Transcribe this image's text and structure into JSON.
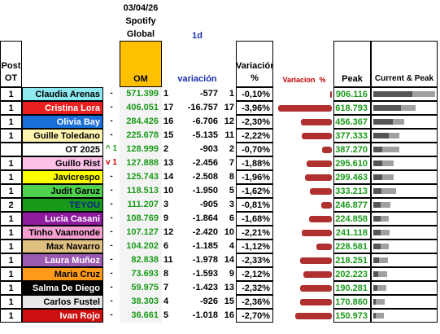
{
  "header": {
    "date": "03/04/26",
    "source": "Spotify",
    "region": "Global",
    "period": "1d"
  },
  "columns": {
    "post": "Post OT",
    "om": "OM",
    "variation": "variación",
    "variation_pct": "Variación %",
    "variation_bar": "Variacion  %",
    "peak": "Peak",
    "current_peak": "Current & Peak"
  },
  "rows": [
    {
      "post": "1",
      "name": "Claudia Arenas",
      "bg": "#8ee8f0",
      "fg": "#000000",
      "change": "-",
      "om": "571.399",
      "rank": "1",
      "variation": "-577",
      "pct_rank": "1",
      "variation_pct": "-0,10%",
      "peak": "906.116"
    },
    {
      "post": "1",
      "name": "Cristina Lora",
      "bg": "#e82020",
      "fg": "#ffffff",
      "change": "-",
      "om": "406.051",
      "rank": "17",
      "variation": "-16.757",
      "pct_rank": "17",
      "variation_pct": "-3,96%",
      "peak": "618.793"
    },
    {
      "post": "1",
      "name": "Olivia Bay",
      "bg": "#1a6fd8",
      "fg": "#ffffff",
      "change": "-",
      "om": "284.426",
      "rank": "16",
      "variation": "-6.706",
      "pct_rank": "12",
      "variation_pct": "-2,30%",
      "peak": "456.367"
    },
    {
      "post": "1",
      "name": "Guille Toledano",
      "bg": "#fff5b0",
      "fg": "#000000",
      "change": "-",
      "om": "225.678",
      "rank": "15",
      "variation": "-5.135",
      "pct_rank": "11",
      "variation_pct": "-2,22%",
      "peak": "377.333"
    },
    {
      "post": null,
      "name": "OT 2025",
      "bg": "#ffffff",
      "fg": "#000000",
      "change": "^ 1",
      "om": "128.999",
      "rank": "2",
      "variation": "-903",
      "pct_rank": "2",
      "variation_pct": "-0,70%",
      "peak": "387.270"
    },
    {
      "post": "1",
      "name": "Guillo Rist",
      "bg": "#ffc0e8",
      "fg": "#000000",
      "change": "v 1",
      "om": "127.888",
      "rank": "13",
      "variation": "-2.456",
      "pct_rank": "7",
      "variation_pct": "-1,88%",
      "peak": "295.610"
    },
    {
      "post": "1",
      "name": "Javicrespo",
      "bg": "#ffff00",
      "fg": "#000000",
      "change": "-",
      "om": "125.743",
      "rank": "14",
      "variation": "-2.508",
      "pct_rank": "8",
      "variation_pct": "-1,96%",
      "peak": "299.463"
    },
    {
      "post": "1",
      "name": "Judit Garuz",
      "bg": "#4fd04f",
      "fg": "#000000",
      "change": "-",
      "om": "118.513",
      "rank": "10",
      "variation": "-1.950",
      "pct_rank": "5",
      "variation_pct": "-1,62%",
      "peak": "333.213"
    },
    {
      "post": "2",
      "name": "TEYOU",
      "bg": "#1a9a1a",
      "fg": "#10208a",
      "change": "-",
      "om": "111.207",
      "rank": "3",
      "variation": "-905",
      "pct_rank": "3",
      "variation_pct": "-0,81%",
      "peak": "246.877"
    },
    {
      "post": "1",
      "name": "Lucia Casani",
      "bg": "#8e1a9e",
      "fg": "#ffffff",
      "change": "-",
      "om": "108.769",
      "rank": "9",
      "variation": "-1.864",
      "pct_rank": "6",
      "variation_pct": "-1,68%",
      "peak": "224.858"
    },
    {
      "post": "1",
      "name": "Tinho Vaamonde",
      "bg": "#f5a0d0",
      "fg": "#000000",
      "change": "-",
      "om": "107.127",
      "rank": "12",
      "variation": "-2.420",
      "pct_rank": "10",
      "variation_pct": "-2,21%",
      "peak": "241.118"
    },
    {
      "post": "1",
      "name": "Max Navarro",
      "bg": "#e0c080",
      "fg": "#000000",
      "change": "-",
      "om": "104.202",
      "rank": "6",
      "variation": "-1.185",
      "pct_rank": "4",
      "variation_pct": "-1,12%",
      "peak": "228.581"
    },
    {
      "post": "1",
      "name": "Laura Muñoz",
      "bg": "#9a5ab0",
      "fg": "#ffffff",
      "change": "-",
      "om": "82.838",
      "rank": "11",
      "variation": "-1.978",
      "pct_rank": "14",
      "variation_pct": "-2,33%",
      "peak": "218.251"
    },
    {
      "post": "1",
      "name": "Maria Cruz",
      "bg": "#ff9a1a",
      "fg": "#000000",
      "change": "-",
      "om": "73.693",
      "rank": "8",
      "variation": "-1.593",
      "pct_rank": "9",
      "variation_pct": "-2,12%",
      "peak": "202.223"
    },
    {
      "post": "1",
      "name": "Salma De Diego",
      "bg": "#000000",
      "fg": "#ffffff",
      "change": "-",
      "om": "59.975",
      "rank": "7",
      "variation": "-1.423",
      "pct_rank": "13",
      "variation_pct": "-2,32%",
      "peak": "190.281"
    },
    {
      "post": "1",
      "name": "Carlos Fustel",
      "bg": "#e8e8e8",
      "fg": "#000000",
      "change": "-",
      "om": "38.303",
      "rank": "4",
      "variation": "-926",
      "pct_rank": "15",
      "variation_pct": "-2,36%",
      "peak": "170.860"
    },
    {
      "post": "1",
      "name": "Ivan Rojo",
      "bg": "#cc1010",
      "fg": "#ffffff",
      "change": "-",
      "om": "36.661",
      "rank": "5",
      "variation": "-1.018",
      "pct_rank": "16",
      "variation_pct": "-2,70%",
      "peak": "150.973"
    }
  ]
}
